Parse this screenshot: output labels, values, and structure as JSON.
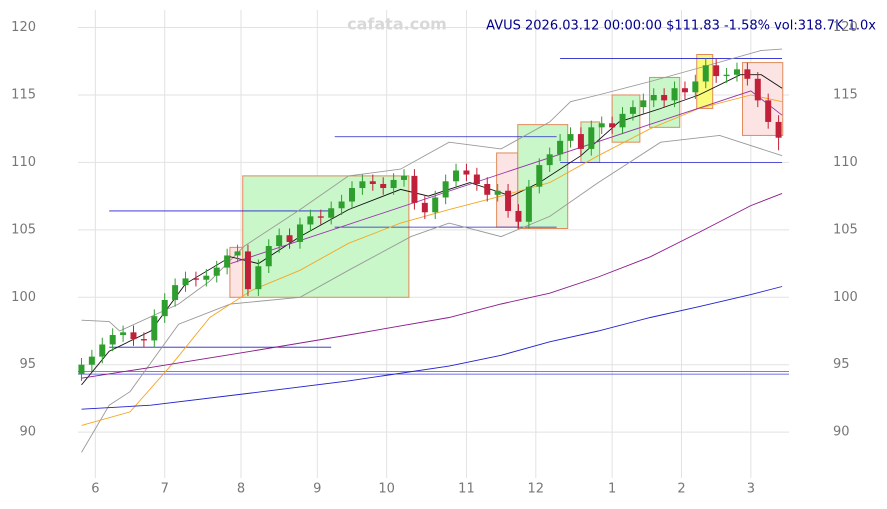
{
  "chart_data": {
    "type": "candlestick",
    "title": "AVUS 2026.03.12 00:00:00 $111.83 -1.58% vol:318.7K 1.0x",
    "watermark": "cafata.com",
    "xlim": [
      -1,
      204
    ],
    "ylim": [
      86.6,
      121.3
    ],
    "xticks": [
      {
        "value": 4,
        "label": "6"
      },
      {
        "value": 24,
        "label": "7"
      },
      {
        "value": 46,
        "label": "8"
      },
      {
        "value": 68,
        "label": "9"
      },
      {
        "value": 88,
        "label": "10"
      },
      {
        "value": 111,
        "label": "11"
      },
      {
        "value": 131,
        "label": "12"
      },
      {
        "value": 153,
        "label": "1"
      },
      {
        "value": 173,
        "label": "2"
      },
      {
        "value": 193,
        "label": "3"
      }
    ],
    "yticks": [
      90,
      95,
      100,
      105,
      110,
      115,
      120
    ],
    "grid": true,
    "up_color": "#2e9e2e",
    "down_color": "#c0203a",
    "x": [
      0,
      3,
      6,
      9,
      12,
      15,
      18,
      21,
      24,
      27,
      30,
      33,
      36,
      39,
      42,
      45,
      48,
      51,
      54,
      57,
      60,
      63,
      66,
      69,
      72,
      75,
      78,
      81,
      84,
      87,
      90,
      93,
      96,
      99,
      102,
      105,
      108,
      111,
      114,
      117,
      120,
      123,
      126,
      129,
      132,
      135,
      138,
      141,
      144,
      147,
      150,
      153,
      156,
      159,
      162,
      165,
      168,
      171,
      174,
      177,
      180,
      183,
      186,
      189,
      192,
      195,
      198,
      201
    ],
    "open": [
      94.3,
      95.0,
      95.6,
      96.5,
      97.2,
      97.4,
      96.9,
      96.8,
      98.6,
      99.8,
      100.9,
      101.4,
      101.3,
      101.6,
      102.2,
      103.1,
      103.4,
      100.6,
      102.3,
      103.8,
      104.6,
      104.1,
      105.4,
      106.0,
      105.9,
      106.6,
      107.1,
      108.1,
      108.6,
      108.4,
      108.1,
      108.7,
      109.0,
      107.0,
      106.3,
      107.4,
      108.6,
      109.4,
      109.1,
      108.4,
      107.6,
      107.9,
      106.4,
      105.6,
      108.2,
      109.8,
      110.6,
      111.6,
      112.1,
      111.0,
      112.6,
      112.9,
      112.6,
      113.6,
      114.1,
      114.6,
      115.0,
      114.6,
      115.5,
      115.2,
      116.0,
      117.2,
      116.4,
      116.5,
      116.9,
      116.2,
      114.6,
      113.0
    ],
    "high": [
      95.5,
      96.1,
      97.0,
      97.7,
      97.9,
      97.9,
      97.4,
      99.1,
      100.3,
      101.4,
      101.9,
      101.9,
      102.1,
      102.7,
      103.6,
      103.9,
      103.9,
      102.8,
      104.3,
      105.1,
      105.1,
      105.9,
      106.5,
      106.5,
      107.1,
      107.6,
      108.6,
      109.1,
      109.1,
      108.9,
      109.2,
      109.5,
      109.5,
      107.5,
      107.9,
      109.1,
      109.9,
      109.9,
      109.6,
      108.9,
      108.4,
      108.4,
      106.9,
      108.7,
      110.3,
      111.1,
      112.1,
      112.6,
      112.6,
      113.1,
      113.4,
      113.4,
      114.1,
      114.6,
      115.1,
      115.5,
      115.5,
      116.0,
      116.0,
      116.5,
      117.7,
      117.7,
      117.0,
      117.4,
      117.4,
      116.7,
      115.1,
      113.5
    ],
    "low": [
      93.8,
      94.5,
      95.1,
      96.0,
      96.7,
      96.4,
      96.3,
      96.3,
      98.1,
      99.3,
      100.4,
      100.8,
      100.8,
      101.1,
      101.7,
      102.6,
      100.1,
      100.1,
      101.8,
      103.3,
      103.6,
      103.6,
      104.9,
      105.4,
      105.4,
      106.1,
      106.6,
      107.6,
      107.9,
      107.6,
      107.6,
      108.2,
      106.5,
      105.8,
      105.8,
      106.9,
      108.1,
      108.6,
      107.9,
      107.1,
      107.1,
      105.9,
      105.1,
      105.1,
      107.7,
      109.3,
      110.1,
      111.1,
      110.5,
      110.5,
      112.1,
      112.1,
      112.1,
      113.1,
      113.6,
      114.1,
      114.1,
      114.1,
      114.7,
      114.7,
      115.5,
      115.9,
      115.9,
      116.0,
      115.7,
      114.1,
      112.5,
      110.9
    ],
    "close": [
      95.0,
      95.6,
      96.5,
      97.2,
      97.4,
      96.9,
      96.8,
      98.6,
      99.8,
      100.9,
      101.4,
      101.3,
      101.6,
      102.2,
      103.1,
      103.4,
      100.6,
      102.3,
      103.8,
      104.6,
      104.1,
      105.4,
      106.0,
      105.9,
      106.6,
      107.1,
      108.1,
      108.6,
      108.4,
      108.1,
      108.7,
      109.0,
      107.0,
      106.3,
      107.4,
      108.6,
      109.4,
      109.1,
      108.4,
      107.6,
      107.9,
      106.4,
      105.6,
      108.2,
      109.8,
      110.6,
      111.6,
      112.1,
      111.0,
      112.6,
      112.9,
      112.6,
      113.6,
      114.1,
      114.6,
      115.0,
      114.6,
      115.5,
      115.2,
      116.0,
      117.2,
      116.4,
      116.5,
      116.9,
      116.2,
      114.6,
      113.0,
      111.83
    ],
    "zones": [
      {
        "x": [
          42.8,
          46.5
        ],
        "y": [
          100,
          103.7
        ],
        "fill": "#fde4e4",
        "stroke": "#e08a5a"
      },
      {
        "x": [
          46.5,
          94.4
        ],
        "y": [
          100,
          109
        ],
        "fill": "#c9f7c9",
        "stroke": "#e08a5a"
      },
      {
        "x": [
          119.7,
          125.8
        ],
        "y": [
          105.2,
          110.7
        ],
        "fill": "#fde4e4",
        "stroke": "#e08a5a"
      },
      {
        "x": [
          125.8,
          140.2
        ],
        "y": [
          105.1,
          112.8
        ],
        "fill": "#c9f7c9",
        "stroke": "#e08a5a"
      },
      {
        "x": [
          144,
          149.4
        ],
        "y": [
          110,
          113
        ],
        "fill": "#c9f7c9",
        "stroke": "#e08a5a"
      },
      {
        "x": [
          153,
          161
        ],
        "y": [
          111.5,
          115
        ],
        "fill": "#c9f7c9",
        "stroke": "#e08a5a"
      },
      {
        "x": [
          163.8,
          172.5
        ],
        "y": [
          112.6,
          116.3
        ],
        "fill": "#c9f7c9",
        "stroke": "#e08a5a"
      },
      {
        "x": [
          177.4,
          182
        ],
        "y": [
          114,
          118
        ],
        "fill": "#fbfb7a",
        "stroke": "#e08a5a"
      },
      {
        "x": [
          190.6,
          202.2
        ],
        "y": [
          112,
          117.4
        ],
        "fill": "#fde4e4",
        "stroke": "#e08a5a"
      }
    ],
    "levels": [
      {
        "x": [
          8,
          72
        ],
        "y": 106.4,
        "color": "#2222cc"
      },
      {
        "x": [
          73,
          137
        ],
        "y": 111.9,
        "color": "#2222cc"
      },
      {
        "x": [
          138,
          202
        ],
        "y": 117.7,
        "color": "#2222cc"
      },
      {
        "x": [
          8,
          72
        ],
        "y": 96.3,
        "color": "#2222cc"
      },
      {
        "x": [
          73,
          137
        ],
        "y": 105.2,
        "color": "#2222cc"
      },
      {
        "x": [
          138,
          202
        ],
        "y": 110,
        "color": "#2222cc"
      },
      {
        "x": [
          -1,
          204
        ],
        "y": 94.3,
        "color": "#4444dd"
      },
      {
        "x": [
          -1,
          204
        ],
        "y": 94.5,
        "color": "#8866aa"
      }
    ],
    "lines": [
      {
        "color": "#999999",
        "x": [
          0,
          8,
          11,
          28,
          37,
          47,
          63,
          77,
          92,
          106,
          121,
          135,
          141,
          149,
          164,
          178,
          196,
          202
        ],
        "values": [
          98.3,
          98.2,
          97.5,
          99.5,
          101.2,
          103.8,
          106.5,
          109,
          109.5,
          111.5,
          111,
          113,
          114.5,
          115,
          116,
          117,
          118.3,
          118.4
        ]
      },
      {
        "color": "#999999",
        "x": [
          0,
          8,
          14,
          28,
          43,
          63,
          77,
          95,
          106,
          121,
          135,
          149,
          167,
          184,
          202
        ],
        "values": [
          88.5,
          92,
          93,
          98,
          99.5,
          100,
          102,
          104.5,
          105.5,
          104.5,
          106,
          108.5,
          111.5,
          112,
          110.5
        ]
      },
      {
        "color": "#111111",
        "x": [
          0,
          8,
          20,
          30,
          43,
          51,
          63,
          77,
          92,
          100,
          112,
          124,
          132,
          144,
          155,
          167,
          178,
          190,
          196,
          202
        ],
        "values": [
          93.5,
          96,
          97.5,
          101,
          103,
          102.5,
          104.5,
          106.5,
          108,
          107.5,
          108.5,
          107.5,
          108.5,
          110.5,
          113,
          114,
          115,
          116.5,
          116.5,
          115.5
        ]
      },
      {
        "color": "#f5a623",
        "x": [
          0,
          14,
          26,
          37,
          49,
          63,
          77,
          92,
          106,
          121,
          135,
          149,
          164,
          178,
          193,
          202
        ],
        "values": [
          90.5,
          91.5,
          95,
          98.5,
          100.5,
          102,
          104,
          105.5,
          106.5,
          107.5,
          108.5,
          110.5,
          112.5,
          114,
          115,
          114.5
        ]
      },
      {
        "color": "#8b1a8b",
        "x": [
          0,
          20,
          49,
          77,
          106,
          121,
          135,
          149,
          164,
          178,
          193,
          202
        ],
        "values": [
          94,
          94.8,
          96,
          97.2,
          98.5,
          99.5,
          100.3,
          101.5,
          103,
          104.8,
          106.8,
          107.7
        ]
      },
      {
        "color": "#2222cc",
        "x": [
          0,
          20,
          49,
          77,
          106,
          121,
          135,
          149,
          164,
          178,
          193,
          202
        ],
        "values": [
          91.7,
          92,
          92.9,
          93.8,
          94.9,
          95.7,
          96.7,
          97.5,
          98.5,
          99.3,
          100.2,
          100.8
        ]
      },
      {
        "color": "#9933aa",
        "x": [
          43,
          193,
          202
        ],
        "values": [
          102.5,
          115.3,
          113.5
        ]
      }
    ]
  }
}
